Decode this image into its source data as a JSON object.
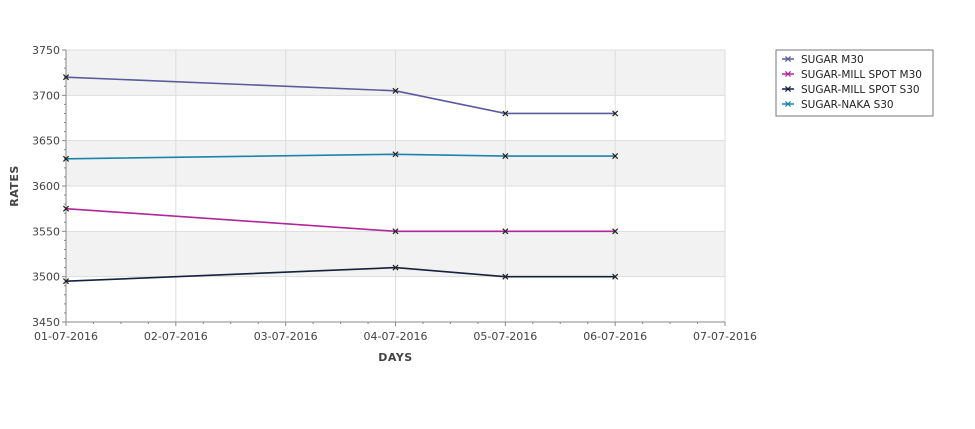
{
  "chart_data": {
    "type": "line",
    "title": "",
    "xlabel": "DAYS",
    "ylabel": "RATES",
    "categories": [
      "01-07-2016",
      "02-07-2016",
      "03-07-2016",
      "04-07-2016",
      "05-07-2016",
      "06-07-2016",
      "07-07-2016"
    ],
    "ylim": [
      3450,
      3750
    ],
    "yticks": [
      "3450",
      "3500",
      "3550",
      "3600",
      "3650",
      "3700",
      "3750"
    ],
    "grid": true,
    "legend_position": "top-right",
    "series": [
      {
        "name": "SUGAR M30",
        "color": "#5b5b9b",
        "points": [
          {
            "x": "01-07-2016",
            "y": 3720
          },
          {
            "x": "04-07-2016",
            "y": 3705
          },
          {
            "x": "05-07-2016",
            "y": 3680
          },
          {
            "x": "06-07-2016",
            "y": 3680
          }
        ]
      },
      {
        "name": "SUGAR-MILL SPOT M30",
        "color": "#b0279a",
        "points": [
          {
            "x": "01-07-2016",
            "y": 3575
          },
          {
            "x": "04-07-2016",
            "y": 3550
          },
          {
            "x": "05-07-2016",
            "y": 3550
          },
          {
            "x": "06-07-2016",
            "y": 3550
          }
        ]
      },
      {
        "name": "SUGAR-MILL SPOT S30",
        "color": "#14213d",
        "points": [
          {
            "x": "01-07-2016",
            "y": 3495
          },
          {
            "x": "04-07-2016",
            "y": 3510
          },
          {
            "x": "05-07-2016",
            "y": 3500
          },
          {
            "x": "06-07-2016",
            "y": 3500
          }
        ]
      },
      {
        "name": "SUGAR-NAKA S30",
        "color": "#1a85a8",
        "points": [
          {
            "x": "01-07-2016",
            "y": 3630
          },
          {
            "x": "04-07-2016",
            "y": 3635
          },
          {
            "x": "05-07-2016",
            "y": 3633
          },
          {
            "x": "06-07-2016",
            "y": 3633
          }
        ]
      }
    ]
  }
}
